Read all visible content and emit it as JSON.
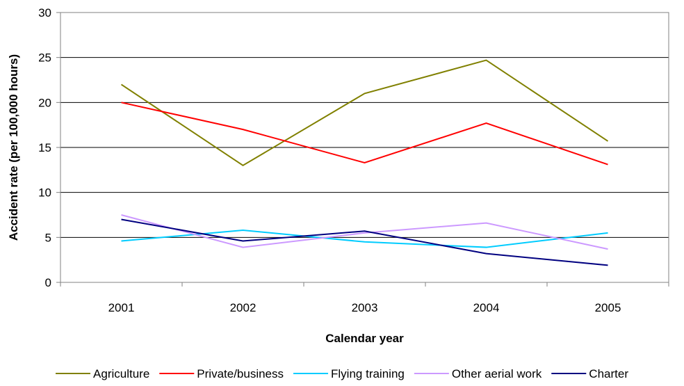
{
  "chart_data": {
    "type": "line",
    "title": "",
    "xlabel": "Calendar year",
    "ylabel": "Accident rate (per 100,000 hours)",
    "categories": [
      "2001",
      "2002",
      "2003",
      "2004",
      "2005"
    ],
    "ylim": [
      0,
      30
    ],
    "yticks": [
      0,
      5,
      10,
      15,
      20,
      25,
      30
    ],
    "grid": true,
    "legend_position": "bottom",
    "series": [
      {
        "name": "Agriculture",
        "color": "#808000",
        "values": [
          22.0,
          13.0,
          21.0,
          24.7,
          15.7
        ]
      },
      {
        "name": "Private/business",
        "color": "#ff0000",
        "values": [
          20.0,
          17.0,
          13.3,
          17.7,
          13.1
        ]
      },
      {
        "name": "Flying training",
        "color": "#00ccff",
        "values": [
          4.6,
          5.8,
          4.5,
          3.9,
          5.5
        ]
      },
      {
        "name": "Other aerial work",
        "color": "#cc99ff",
        "values": [
          7.5,
          3.9,
          5.5,
          6.6,
          3.7
        ]
      },
      {
        "name": "Charter",
        "color": "#000080",
        "values": [
          7.0,
          4.6,
          5.7,
          3.2,
          1.9
        ]
      }
    ]
  }
}
